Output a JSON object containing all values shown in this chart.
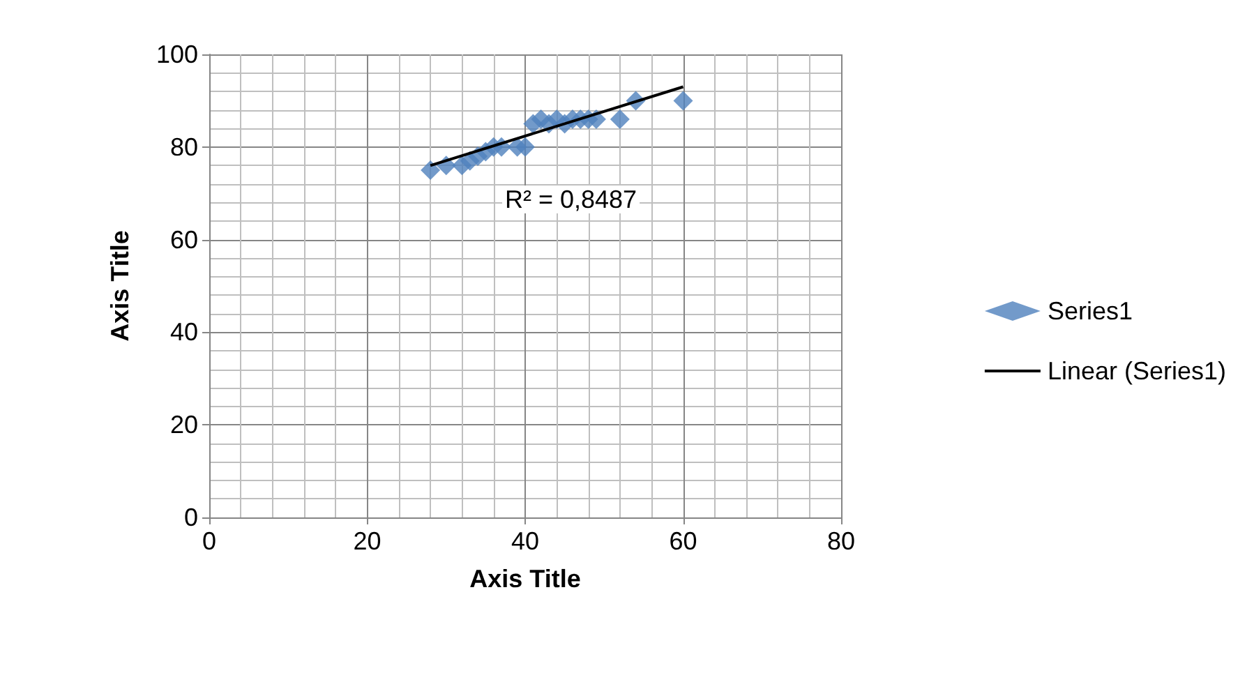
{
  "chart_data": {
    "type": "scatter",
    "xlabel": "Axis Title",
    "ylabel": "Axis Title",
    "xlim": [
      0,
      80
    ],
    "xticks": [
      0,
      20,
      40,
      60,
      80
    ],
    "ylim": [
      0,
      100
    ],
    "yticks": [
      0,
      20,
      40,
      60,
      80,
      100
    ],
    "grid": true,
    "legend": "right",
    "marker": "diamond",
    "annotations": [
      "R² = 0,8487"
    ],
    "series": [
      {
        "name": "Series1",
        "color": "#4f81bd",
        "x": [
          28,
          30,
          32,
          33,
          34,
          35,
          36,
          37,
          39,
          40,
          41,
          42,
          43,
          44,
          45,
          46,
          47,
          48,
          49,
          52,
          54,
          60
        ],
        "values": [
          75,
          76,
          76,
          77,
          78,
          79,
          80,
          80,
          80,
          80,
          85,
          86,
          85,
          86,
          85,
          86,
          86,
          86,
          86,
          86,
          90,
          90
        ]
      },
      {
        "name": "Linear (Series1)",
        "type": "line",
        "marker": "none",
        "color": "#000000",
        "line_style": "solid",
        "x": [
          28,
          60
        ],
        "values": [
          76,
          93
        ]
      }
    ]
  }
}
